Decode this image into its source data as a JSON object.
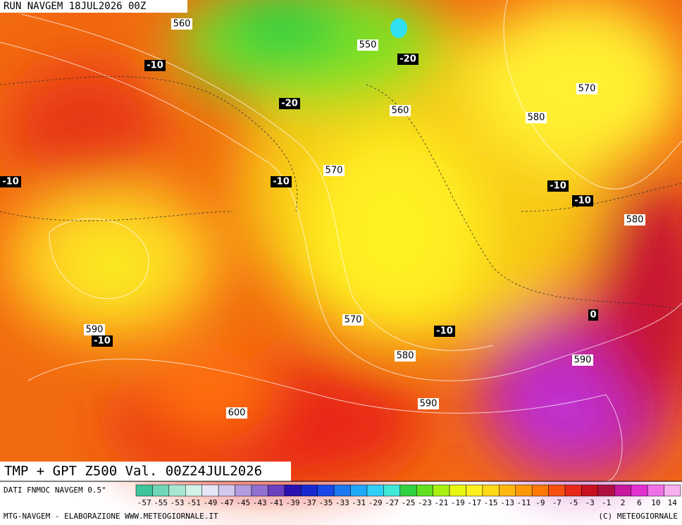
{
  "header": {
    "run": "RUN NAVGEM 18JUL2026 00Z"
  },
  "map": {
    "title": "TMP + GPT Z500 Val. 00Z24JUL2026",
    "geopotential_labels": [
      560,
      550,
      560,
      570,
      580,
      570,
      580,
      590,
      570,
      580,
      590,
      590,
      600
    ],
    "temperature_labels": [
      -10,
      -20,
      -20,
      -10,
      -10,
      -10,
      -10,
      -10,
      -10,
      0
    ]
  },
  "legend": {
    "source": "DATI FNMOC NAVGEM 0.5°",
    "ticks": [
      -57,
      -55,
      -53,
      -51,
      -49,
      -47,
      -45,
      -43,
      -41,
      -39,
      -37,
      -35,
      -33,
      -31,
      -29,
      -27,
      -25,
      -23,
      -21,
      -19,
      -17,
      -15,
      -13,
      -11,
      -9,
      -7,
      -5,
      -3,
      -1,
      2,
      6,
      10,
      14
    ],
    "colors": [
      "#3ec49a",
      "#6fd6b6",
      "#a6e8d4",
      "#d2f2ea",
      "#e6e6f6",
      "#d2c8ee",
      "#b49ce0",
      "#9070d0",
      "#6a40c0",
      "#2a10b0",
      "#1828d0",
      "#1848e8",
      "#1c78f0",
      "#20a8f8",
      "#30d0f8",
      "#40e8d8",
      "#30d040",
      "#60e020",
      "#a8f010",
      "#e8f810",
      "#fff020",
      "#ffd818",
      "#ffb810",
      "#ff9808",
      "#ff7808",
      "#f85010",
      "#e82818",
      "#c81020",
      "#b01040",
      "#c818a0",
      "#e030d0",
      "#f070e8",
      "#f8b0f0"
    ]
  },
  "footer": {
    "left": "MTG-NAVGEM - ELABORAZIONE WWW.METEOGIORNALE.IT",
    "right": "(C) METEOGIORNALE"
  }
}
